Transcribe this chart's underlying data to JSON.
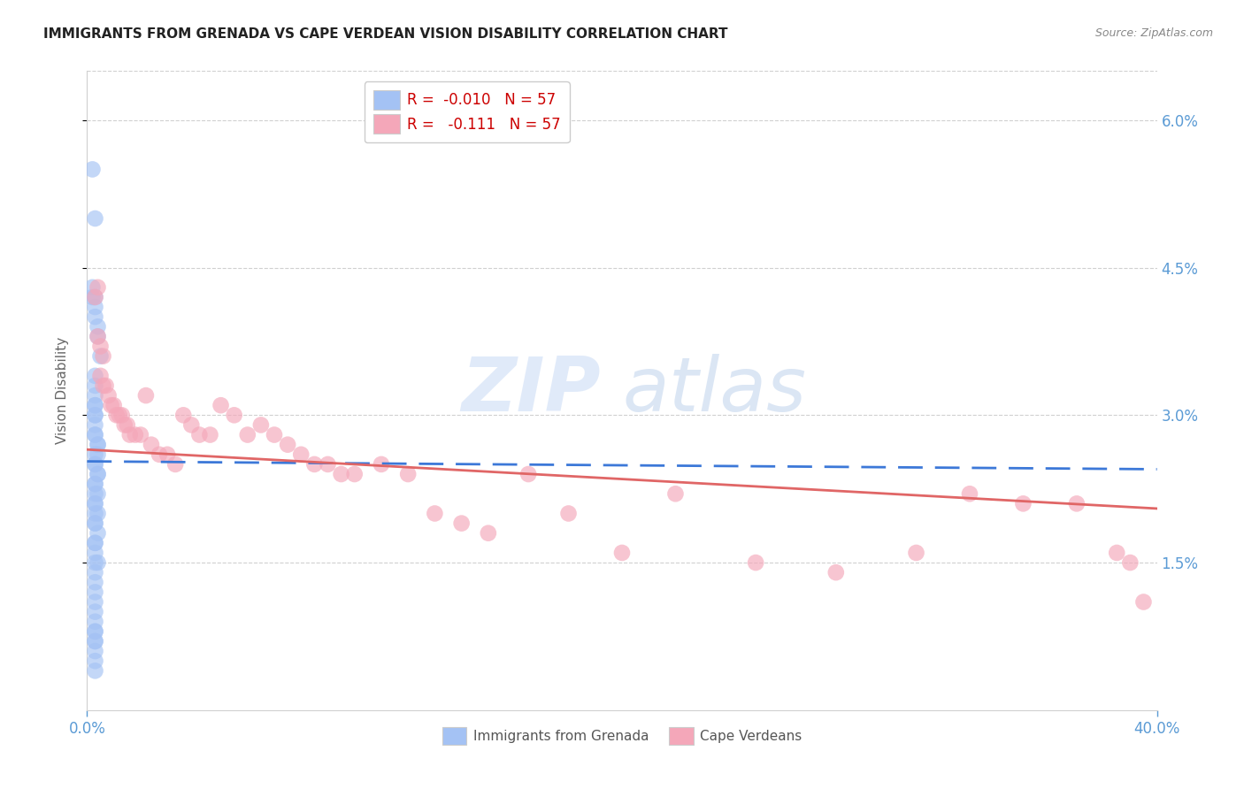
{
  "title": "IMMIGRANTS FROM GRENADA VS CAPE VERDEAN VISION DISABILITY CORRELATION CHART",
  "source": "Source: ZipAtlas.com",
  "ylabel": "Vision Disability",
  "x_min": 0.0,
  "x_max": 0.4,
  "y_min": 0.0,
  "y_max": 0.065,
  "y_ticks": [
    0.015,
    0.03,
    0.045,
    0.06
  ],
  "y_tick_labels": [
    "1.5%",
    "3.0%",
    "4.5%",
    "6.0%"
  ],
  "color_blue": "#a4c2f4",
  "color_pink": "#f4a7b9",
  "trendline_blue_color": "#3c78d8",
  "trendline_pink_color": "#e06666",
  "background_color": "#ffffff",
  "watermark": "ZIPatlas",
  "grenada_x": [
    0.002,
    0.003,
    0.002,
    0.002,
    0.003,
    0.003,
    0.003,
    0.004,
    0.004,
    0.005,
    0.003,
    0.003,
    0.003,
    0.003,
    0.003,
    0.003,
    0.003,
    0.003,
    0.003,
    0.003,
    0.004,
    0.004,
    0.003,
    0.004,
    0.003,
    0.003,
    0.004,
    0.004,
    0.003,
    0.003,
    0.003,
    0.004,
    0.003,
    0.003,
    0.003,
    0.004,
    0.003,
    0.003,
    0.004,
    0.003,
    0.003,
    0.003,
    0.003,
    0.004,
    0.003,
    0.003,
    0.003,
    0.003,
    0.003,
    0.003,
    0.003,
    0.003,
    0.003,
    0.003,
    0.003,
    0.003,
    0.003
  ],
  "grenada_y": [
    0.055,
    0.05,
    0.043,
    0.042,
    0.042,
    0.041,
    0.04,
    0.039,
    0.038,
    0.036,
    0.034,
    0.033,
    0.032,
    0.031,
    0.031,
    0.03,
    0.03,
    0.029,
    0.028,
    0.028,
    0.027,
    0.027,
    0.026,
    0.026,
    0.025,
    0.025,
    0.024,
    0.024,
    0.023,
    0.023,
    0.022,
    0.022,
    0.021,
    0.021,
    0.02,
    0.02,
    0.019,
    0.019,
    0.018,
    0.017,
    0.017,
    0.016,
    0.015,
    0.015,
    0.014,
    0.013,
    0.012,
    0.011,
    0.01,
    0.009,
    0.008,
    0.008,
    0.007,
    0.007,
    0.006,
    0.005,
    0.004
  ],
  "capeverde_x": [
    0.003,
    0.004,
    0.004,
    0.005,
    0.006,
    0.005,
    0.006,
    0.007,
    0.008,
    0.009,
    0.01,
    0.011,
    0.012,
    0.013,
    0.014,
    0.015,
    0.016,
    0.018,
    0.02,
    0.022,
    0.024,
    0.027,
    0.03,
    0.033,
    0.036,
    0.039,
    0.042,
    0.046,
    0.05,
    0.055,
    0.06,
    0.065,
    0.07,
    0.075,
    0.08,
    0.085,
    0.09,
    0.095,
    0.1,
    0.11,
    0.12,
    0.13,
    0.14,
    0.15,
    0.165,
    0.18,
    0.2,
    0.22,
    0.25,
    0.28,
    0.31,
    0.33,
    0.35,
    0.37,
    0.385,
    0.39,
    0.395
  ],
  "capeverde_y": [
    0.042,
    0.043,
    0.038,
    0.037,
    0.036,
    0.034,
    0.033,
    0.033,
    0.032,
    0.031,
    0.031,
    0.03,
    0.03,
    0.03,
    0.029,
    0.029,
    0.028,
    0.028,
    0.028,
    0.032,
    0.027,
    0.026,
    0.026,
    0.025,
    0.03,
    0.029,
    0.028,
    0.028,
    0.031,
    0.03,
    0.028,
    0.029,
    0.028,
    0.027,
    0.026,
    0.025,
    0.025,
    0.024,
    0.024,
    0.025,
    0.024,
    0.02,
    0.019,
    0.018,
    0.024,
    0.02,
    0.016,
    0.022,
    0.015,
    0.014,
    0.016,
    0.022,
    0.021,
    0.021,
    0.016,
    0.015,
    0.011
  ],
  "trendline_blue_start_y": 0.0253,
  "trendline_blue_end_y": 0.0245,
  "trendline_pink_start_y": 0.0265,
  "trendline_pink_end_y": 0.0205
}
